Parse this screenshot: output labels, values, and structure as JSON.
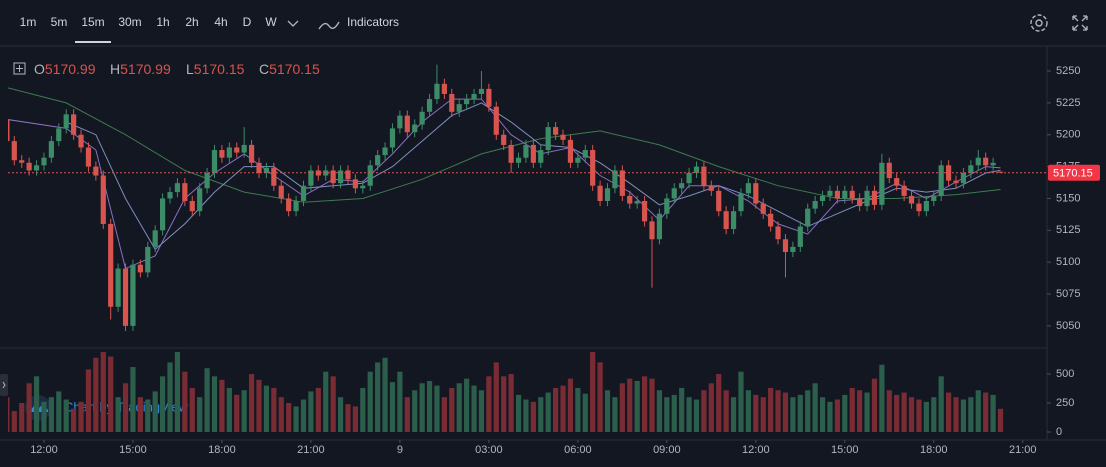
{
  "toolbar": {
    "intervals": [
      "1m",
      "5m",
      "15m",
      "30m",
      "1h",
      "2h",
      "4h",
      "D",
      "W"
    ],
    "selected": 2,
    "indicators": "Indicators"
  },
  "chart_data": {
    "type": "candlestick",
    "legend_labels": [
      "O",
      "H",
      "L",
      "C"
    ],
    "watermark": "Chart by TradingView",
    "up_color": "#3d8c68",
    "down_color": "#d8544f",
    "volume_up_color": "#2c5e4c",
    "volume_down_color": "#7a2c35",
    "xlim": [
      0.15,
      140
    ],
    "xticks": [
      {
        "value": 5,
        "label": "12:00"
      },
      {
        "value": 17,
        "label": "15:00"
      },
      {
        "value": 29,
        "label": "18:00"
      },
      {
        "value": 41,
        "label": "21:00"
      },
      {
        "value": 53,
        "label": "9"
      },
      {
        "value": 65,
        "label": "03:00"
      },
      {
        "value": 77,
        "label": "06:00"
      },
      {
        "value": 89,
        "label": "09:00"
      },
      {
        "value": 101,
        "label": "12:00"
      },
      {
        "value": 113,
        "label": "15:00"
      },
      {
        "value": 125,
        "label": "18:00"
      },
      {
        "value": 137,
        "label": "21:00"
      }
    ],
    "ylim": [
      5035,
      5266.5
    ],
    "yticks": [
      5050,
      5075,
      5100,
      5125,
      5150,
      5175,
      5200,
      5225,
      5250
    ],
    "vlim": [
      -69,
      707
    ],
    "vticks": [
      0,
      250,
      500
    ],
    "open": [
      5212,
      5195,
      5180,
      5178,
      5172,
      5176,
      5182,
      5195,
      5205,
      5216,
      5200,
      5190,
      5175,
      5168,
      5130,
      5065,
      5095,
      5050,
      5098,
      5092,
      5112,
      5125,
      5150,
      5155,
      5162,
      5148,
      5140,
      5158,
      5170,
      5188,
      5182,
      5190,
      5186,
      5192,
      5178,
      5170,
      5174,
      5160,
      5150,
      5140,
      5148,
      5160,
      5172,
      5168,
      5172,
      5162,
      5172,
      5165,
      5158,
      5160,
      5176,
      5184,
      5190,
      5205,
      5215,
      5202,
      5208,
      5218,
      5228,
      5240,
      5232,
      5218,
      5224,
      5228,
      5232,
      5236,
      5222,
      5200,
      5192,
      5178,
      5182,
      5192,
      5178,
      5188,
      5206,
      5200,
      5196,
      5178,
      5182,
      5188,
      5160,
      5148,
      5158,
      5172,
      5152,
      5146,
      5148,
      5132,
      5118,
      5138,
      5150,
      5158,
      5162,
      5170,
      5175,
      5160,
      5156,
      5140,
      5126,
      5140,
      5154,
      5162,
      5146,
      5138,
      5128,
      5118,
      5108,
      5112,
      5128,
      5142,
      5148,
      5152,
      5156,
      5150,
      5156,
      5150,
      5144,
      5156,
      5145,
      5178,
      5166,
      5160,
      5152,
      5146,
      5140,
      5148,
      5152,
      5176,
      5164,
      5162,
      5170,
      5176,
      5182,
      5176,
      5170.99
    ],
    "high": [
      5216,
      5199,
      5184,
      5182,
      5180,
      5186,
      5199,
      5209,
      5220,
      5220,
      5204,
      5194,
      5179,
      5172,
      5134,
      5099,
      5099,
      5102,
      5102,
      5116,
      5129,
      5154,
      5159,
      5166,
      5166,
      5152,
      5162,
      5174,
      5192,
      5192,
      5194,
      5194,
      5206,
      5196,
      5182,
      5178,
      5178,
      5164,
      5154,
      5152,
      5164,
      5176,
      5176,
      5176,
      5176,
      5176,
      5176,
      5169,
      5164,
      5180,
      5188,
      5194,
      5209,
      5219,
      5219,
      5212,
      5222,
      5232,
      5255,
      5244,
      5236,
      5228,
      5232,
      5236,
      5250,
      5240,
      5226,
      5204,
      5196,
      5186,
      5196,
      5196,
      5192,
      5210,
      5210,
      5204,
      5200,
      5186,
      5192,
      5192,
      5164,
      5162,
      5176,
      5176,
      5156,
      5152,
      5152,
      5136,
      5142,
      5154,
      5162,
      5166,
      5174,
      5179,
      5179,
      5164,
      5160,
      5144,
      5144,
      5158,
      5166,
      5166,
      5150,
      5142,
      5132,
      5122,
      5116,
      5132,
      5146,
      5152,
      5156,
      5160,
      5160,
      5160,
      5160,
      5154,
      5160,
      5160,
      5185,
      5182,
      5170,
      5164,
      5156,
      5150,
      5152,
      5156,
      5180,
      5180,
      5168,
      5174,
      5180,
      5188,
      5186,
      5182,
      5170.99
    ],
    "low": [
      5191,
      5176,
      5174,
      5168,
      5168,
      5172,
      5178,
      5191,
      5201,
      5196,
      5186,
      5171,
      5164,
      5126,
      5055,
      5061,
      5046,
      5046,
      5088,
      5088,
      5108,
      5121,
      5146,
      5151,
      5144,
      5136,
      5136,
      5154,
      5166,
      5178,
      5178,
      5182,
      5182,
      5174,
      5166,
      5166,
      5156,
      5146,
      5136,
      5136,
      5144,
      5156,
      5164,
      5164,
      5158,
      5158,
      5161,
      5154,
      5154,
      5156,
      5172,
      5180,
      5186,
      5201,
      5198,
      5198,
      5204,
      5214,
      5224,
      5228,
      5214,
      5214,
      5220,
      5224,
      5228,
      5218,
      5196,
      5188,
      5170,
      5174,
      5178,
      5174,
      5174,
      5184,
      5196,
      5192,
      5174,
      5174,
      5178,
      5156,
      5144,
      5144,
      5154,
      5148,
      5142,
      5142,
      5128,
      5080,
      5114,
      5134,
      5146,
      5154,
      5158,
      5166,
      5156,
      5152,
      5136,
      5122,
      5122,
      5136,
      5150,
      5142,
      5134,
      5124,
      5114,
      5088,
      5104,
      5108,
      5124,
      5138,
      5144,
      5148,
      5146,
      5146,
      5146,
      5140,
      5140,
      5141,
      5141,
      5162,
      5156,
      5148,
      5142,
      5136,
      5136,
      5144,
      5148,
      5160,
      5158,
      5158,
      5166,
      5172,
      5172,
      5172,
      5170.15
    ],
    "close": [
      5195,
      5180,
      5178,
      5172,
      5176,
      5182,
      5195,
      5205,
      5216,
      5200,
      5190,
      5175,
      5168,
      5130,
      5065,
      5095,
      5050,
      5098,
      5092,
      5112,
      5125,
      5150,
      5155,
      5162,
      5148,
      5140,
      5158,
      5170,
      5188,
      5182,
      5190,
      5186,
      5192,
      5178,
      5170,
      5174,
      5160,
      5150,
      5140,
      5148,
      5160,
      5172,
      5168,
      5172,
      5162,
      5172,
      5165,
      5158,
      5160,
      5176,
      5184,
      5190,
      5205,
      5215,
      5202,
      5208,
      5218,
      5228,
      5240,
      5232,
      5218,
      5224,
      5228,
      5232,
      5236,
      5222,
      5200,
      5192,
      5178,
      5182,
      5192,
      5178,
      5188,
      5206,
      5200,
      5196,
      5178,
      5182,
      5188,
      5160,
      5148,
      5158,
      5172,
      5152,
      5146,
      5148,
      5132,
      5118,
      5138,
      5150,
      5158,
      5162,
      5170,
      5175,
      5160,
      5156,
      5140,
      5126,
      5140,
      5154,
      5162,
      5146,
      5138,
      5128,
      5118,
      5108,
      5112,
      5128,
      5142,
      5148,
      5152,
      5156,
      5150,
      5156,
      5150,
      5144,
      5156,
      5145,
      5178,
      5166,
      5160,
      5152,
      5146,
      5140,
      5148,
      5152,
      5176,
      5164,
      5162,
      5170,
      5176,
      5182,
      5176,
      5178,
      5170.15
    ],
    "volume": [
      300,
      180,
      250,
      420,
      480,
      260,
      300,
      350,
      280,
      200,
      260,
      540,
      640,
      690,
      650,
      300,
      420,
      560,
      300,
      280,
      350,
      480,
      600,
      690,
      520,
      380,
      300,
      550,
      480,
      450,
      380,
      320,
      360,
      500,
      450,
      400,
      380,
      300,
      250,
      220,
      280,
      350,
      380,
      520,
      480,
      300,
      240,
      220,
      380,
      520,
      600,
      640,
      430,
      520,
      300,
      360,
      420,
      440,
      400,
      300,
      380,
      420,
      460,
      400,
      360,
      480,
      600,
      480,
      500,
      320,
      280,
      260,
      300,
      340,
      380,
      400,
      460,
      380,
      330,
      690,
      600,
      360,
      300,
      420,
      460,
      440,
      480,
      460,
      360,
      300,
      320,
      380,
      300,
      280,
      360,
      420,
      500,
      360,
      300,
      520,
      360,
      320,
      300,
      380,
      360,
      340,
      300,
      320,
      360,
      420,
      300,
      260,
      280,
      320,
      380,
      360,
      340,
      460,
      580,
      360,
      320,
      340,
      300,
      280,
      260,
      300,
      480,
      340,
      300,
      280,
      300,
      360,
      340,
      320,
      200
    ],
    "indicators": [
      {
        "color": "#3f7a4e",
        "x": [
          0,
          8,
          16,
          24,
          32,
          40,
          48,
          56,
          64,
          72,
          80,
          88,
          96,
          104,
          112,
          120,
          128,
          134
        ],
        "values": [
          5237,
          5225,
          5200,
          5172,
          5155,
          5147,
          5150,
          5165,
          5185,
          5197,
          5203,
          5192,
          5175,
          5160,
          5150,
          5150,
          5153,
          5157
        ]
      },
      {
        "color": "#8a6fc4",
        "x": [
          0,
          8,
          12,
          16,
          20,
          24,
          28,
          32,
          36,
          40,
          44,
          48,
          52,
          56,
          60,
          64,
          68,
          72,
          76,
          80,
          84,
          88,
          92,
          96,
          100,
          104,
          108,
          112,
          116,
          120,
          124,
          128,
          132,
          134
        ],
        "values": [
          5212,
          5205,
          5188,
          5095,
          5105,
          5150,
          5170,
          5185,
          5168,
          5152,
          5165,
          5163,
          5185,
          5210,
          5228,
          5228,
          5200,
          5185,
          5190,
          5168,
          5155,
          5133,
          5160,
          5160,
          5148,
          5130,
          5122,
          5148,
          5150,
          5162,
          5150,
          5163,
          5175,
          5174
        ]
      },
      {
        "color": "#7d8fc0",
        "x": [
          8,
          12,
          16,
          20,
          24,
          28,
          32,
          36,
          40,
          44,
          48,
          52,
          56,
          60,
          64,
          68,
          72,
          76,
          80,
          84,
          88,
          92,
          96,
          100,
          104,
          108,
          112,
          116,
          120,
          124,
          128,
          132,
          134
        ],
        "values": [
          5210,
          5200,
          5150,
          5110,
          5130,
          5155,
          5175,
          5175,
          5158,
          5160,
          5162,
          5175,
          5195,
          5215,
          5225,
          5210,
          5192,
          5190,
          5178,
          5162,
          5145,
          5152,
          5160,
          5152,
          5140,
          5128,
          5138,
          5148,
          5158,
          5155,
          5158,
          5170,
          5172
        ]
      }
    ]
  }
}
